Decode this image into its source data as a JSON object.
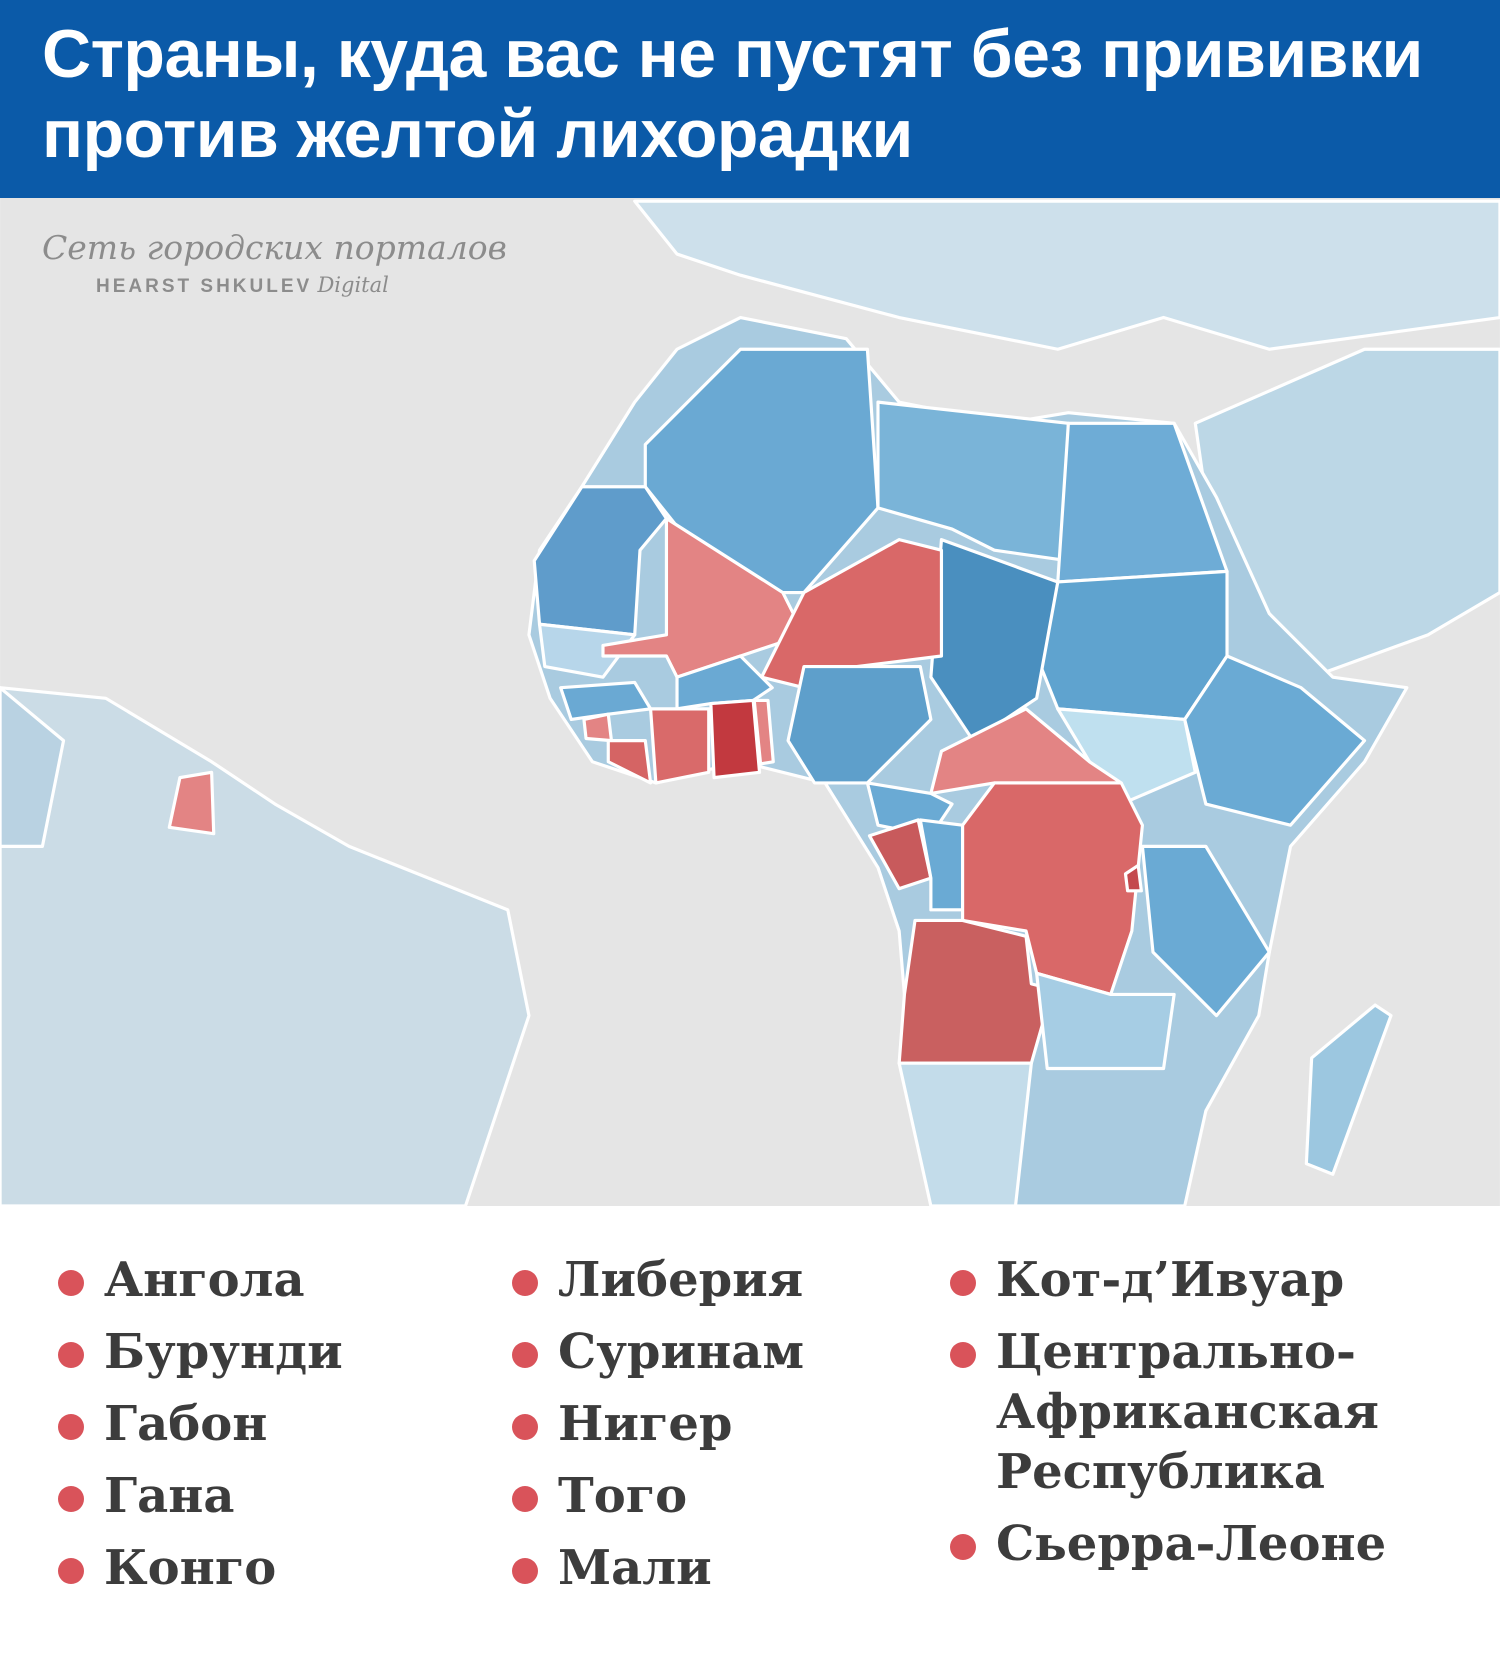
{
  "header": {
    "title": "Страны, куда вас не пустят без прививки против желтой лихорадки"
  },
  "watermark": {
    "line1": "Сеть городских порталов",
    "brand": "HEARST SHKULEV",
    "suffix": "Digital"
  },
  "list": {
    "columns": [
      [
        "Ангола",
        "Бурунди",
        "Габон",
        "Гана",
        "Конго"
      ],
      [
        "Либерия",
        "Суринам",
        "Нигер",
        "Того",
        "Мали"
      ],
      [
        "Кот-д’Ивуар",
        "Центрально-Африканская Республика",
        "Сьерра-Леоне"
      ]
    ]
  }
}
